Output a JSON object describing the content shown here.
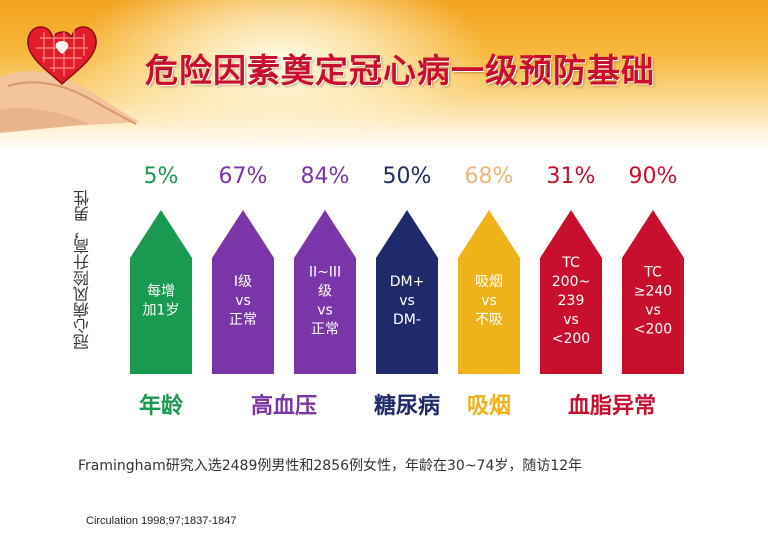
{
  "title": "危险因素奠定冠心病一级预防基础",
  "y_axis_label": "冠心病风险升高，男性",
  "chart_data": {
    "type": "bar",
    "title": "危险因素奠定冠心病一级预防基础",
    "ylabel": "冠心病风险升高，男性",
    "categories": [
      "每增加1岁",
      "I级 vs 正常",
      "II~III级 vs 正常",
      "DM+ vs DM-",
      "吸烟 vs 不吸",
      "TC 200~239 vs <200",
      "TC ≥240 vs <200"
    ],
    "bar_labels": [
      [
        "每增",
        "加1岁"
      ],
      [
        "I级",
        "vs",
        "正常"
      ],
      [
        "II~III",
        "级",
        "vs",
        "正常"
      ],
      [
        "DM+",
        "vs",
        "DM-"
      ],
      [
        "吸烟",
        "vs",
        "不吸"
      ],
      [
        "TC",
        "200~",
        "239",
        "vs",
        "<200"
      ],
      [
        "TC",
        "≥240",
        "vs",
        "<200"
      ]
    ],
    "values": [
      5,
      67,
      84,
      50,
      68,
      31,
      90
    ],
    "value_labels": [
      "5%",
      "67%",
      "84%",
      "50%",
      "68%",
      "31%",
      "90%"
    ],
    "colors": [
      "#1a9a50",
      "#7a35a8",
      "#7a35a8",
      "#1f2a6b",
      "#f0b21a",
      "#c8102e",
      "#c8102e"
    ],
    "value_colors": [
      "#1a9a50",
      "#7a35a8",
      "#7a35a8",
      "#1f2a6b",
      "#f0b679",
      "#c8102e",
      "#c8102e"
    ],
    "groups": [
      {
        "label": "年龄",
        "color": "#1a9a50",
        "start": 0,
        "end": 0
      },
      {
        "label": "高血压",
        "color": "#7a35a8",
        "start": 1,
        "end": 2
      },
      {
        "label": "糖尿病",
        "color": "#1f2a6b",
        "start": 3,
        "end": 3
      },
      {
        "label": "吸烟",
        "color": "#f0b21a",
        "start": 4,
        "end": 4
      },
      {
        "label": "血脂异常",
        "color": "#c8102e",
        "start": 5,
        "end": 6
      }
    ]
  },
  "footnote": "Framingham研究入选2489例男性和2856例女性，年龄在30~74岁，随访12年",
  "citation": "Circulation 1998;97;1837-1847",
  "icons": {
    "logo": "heart-knot-hands-icon"
  }
}
